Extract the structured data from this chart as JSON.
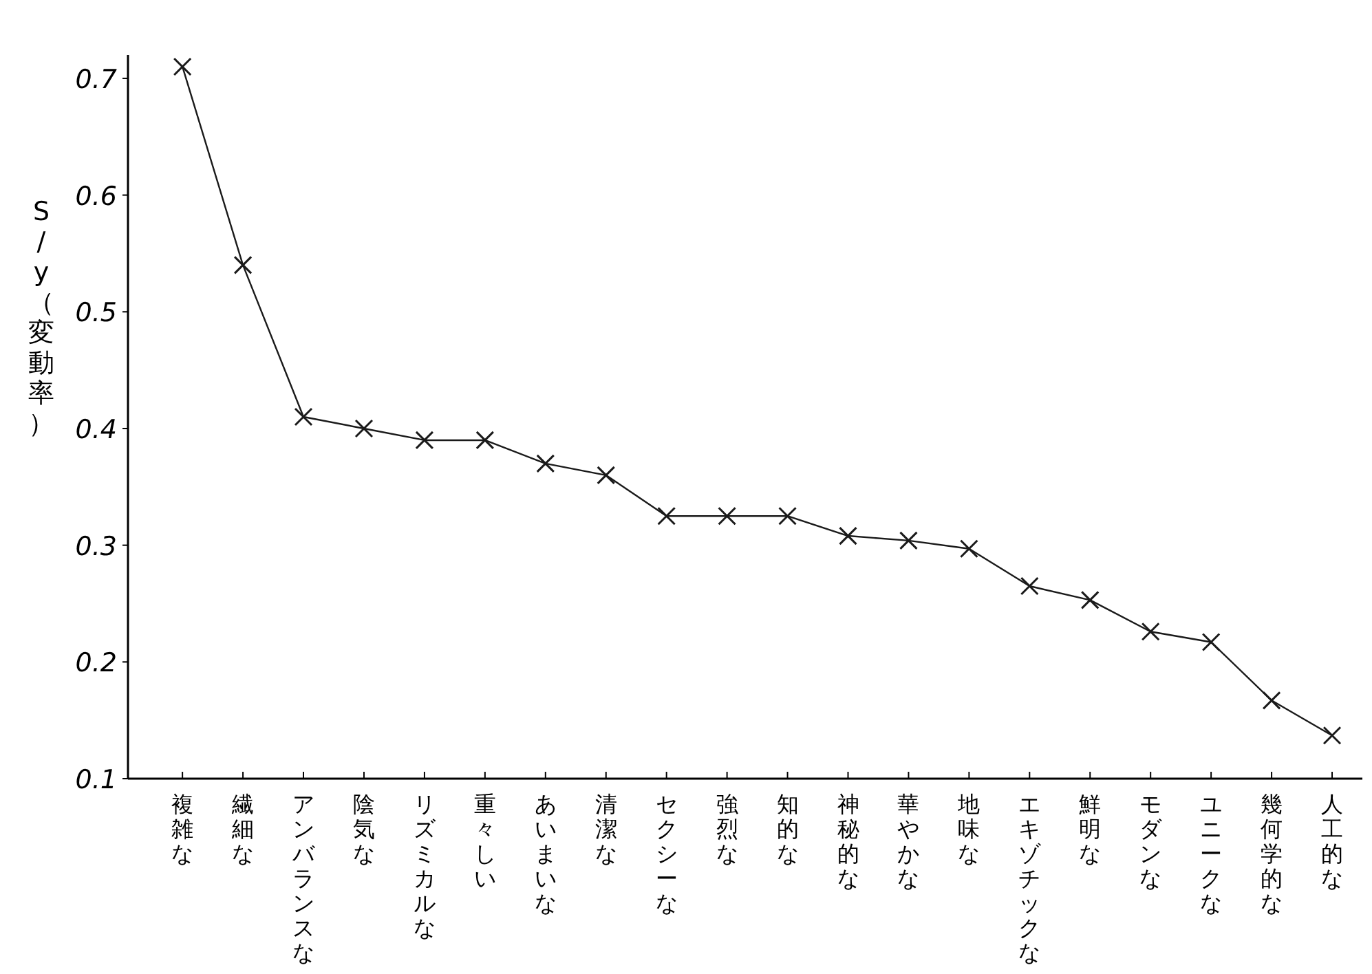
{
  "chart_data": {
    "type": "line",
    "ylabel": "S/y（変動率）",
    "categories": [
      "複雑な",
      "繊細な",
      "アンバランスな",
      "陰気な",
      "リズミカルな",
      "重々しい",
      "あいまいな",
      "清潔な",
      "セクシーな",
      "強烈な",
      "知的な",
      "神秘的な",
      "華やかな",
      "地味な",
      "エキゾチックな",
      "鮮明な",
      "モダンな",
      "ユニークな",
      "幾何学的な",
      "人工的な"
    ],
    "series": [
      {
        "color": "#1a1a1a",
        "values": [
          0.71,
          0.54,
          0.41,
          0.4,
          0.39,
          0.39,
          0.37,
          0.36,
          0.325,
          0.325,
          0.325,
          0.308,
          0.304,
          0.297,
          0.265,
          0.253,
          0.226,
          0.217,
          0.167,
          0.137
        ]
      }
    ],
    "ylim": [
      0.1,
      0.72
    ],
    "yticks": [
      0.1,
      0.2,
      0.3,
      0.4,
      0.5,
      0.6,
      0.7
    ],
    "marker": "cross",
    "line_style": "solid"
  }
}
